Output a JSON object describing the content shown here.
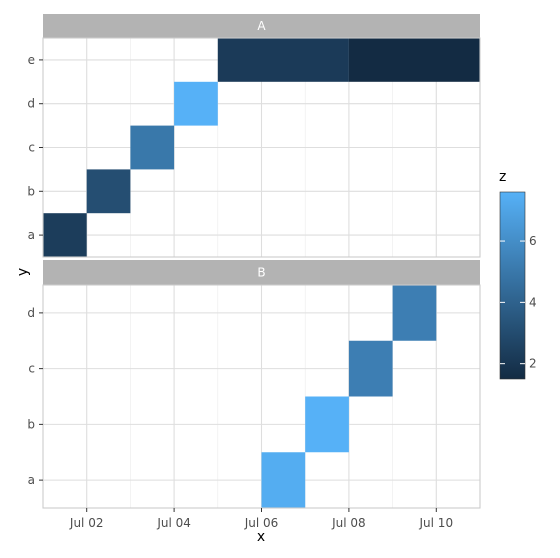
{
  "chart_data": {
    "type": "heatmap",
    "xlabel": "x",
    "ylabel": "y",
    "x_ticks": [
      "Jul 02",
      "Jul 04",
      "Jul 06",
      "Jul 08",
      "Jul 10"
    ],
    "x_tick_dates": [
      "2023-07-02",
      "2023-07-04",
      "2023-07-06",
      "2023-07-08",
      "2023-07-10"
    ],
    "xlim": [
      "2023-07-01",
      "2023-07-11"
    ],
    "panels": [
      {
        "label": "A",
        "y_categories": [
          "a",
          "b",
          "c",
          "d",
          "e"
        ],
        "tiles": [
          {
            "x_start": "2023-07-01",
            "x_end": "2023-07-02",
            "y": "a",
            "z": 2.3
          },
          {
            "x_start": "2023-07-02",
            "x_end": "2023-07-03",
            "y": "b",
            "z": 3.1
          },
          {
            "x_start": "2023-07-03",
            "x_end": "2023-07-04",
            "y": "c",
            "z": 5.0
          },
          {
            "x_start": "2023-07-04",
            "x_end": "2023-07-05",
            "y": "d",
            "z": 7.6
          },
          {
            "x_start": "2023-07-05",
            "x_end": "2023-07-08",
            "y": "e",
            "z": 2.2
          },
          {
            "x_start": "2023-07-08",
            "x_end": "2023-07-11",
            "y": "e",
            "z": 1.5
          }
        ]
      },
      {
        "label": "B",
        "y_categories": [
          "a",
          "b",
          "c",
          "d"
        ],
        "tiles": [
          {
            "x_start": "2023-07-06",
            "x_end": "2023-07-07",
            "y": "a",
            "z": 7.4
          },
          {
            "x_start": "2023-07-07",
            "x_end": "2023-07-08",
            "y": "b",
            "z": 7.6
          },
          {
            "x_start": "2023-07-08",
            "x_end": "2023-07-09",
            "y": "c",
            "z": 5.3
          },
          {
            "x_start": "2023-07-09",
            "x_end": "2023-07-10",
            "y": "d",
            "z": 5.3
          }
        ]
      }
    ],
    "legend": {
      "title": "z",
      "position": "right",
      "ticks": [
        2,
        4,
        6
      ],
      "z_range": [
        1.5,
        7.6
      ],
      "low_color": "#132B43",
      "high_color": "#56B1F7"
    },
    "grid": true,
    "panel_border_color": "#cccccc",
    "strip_color": "#b3b3b3",
    "grid_color": "#dedede"
  }
}
